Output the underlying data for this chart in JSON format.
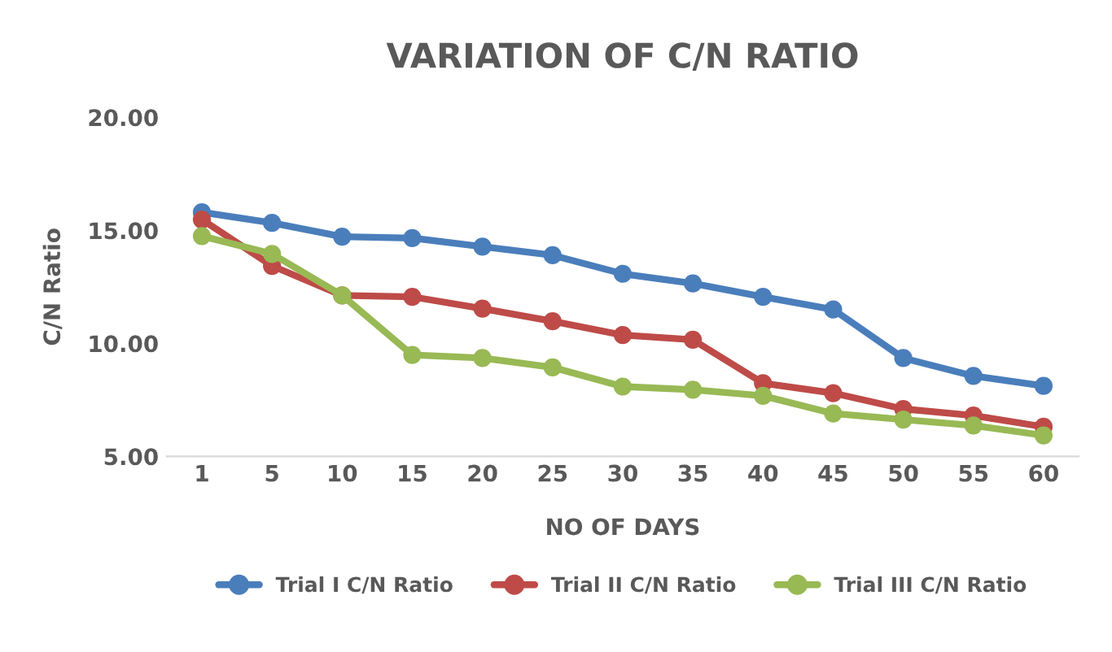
{
  "chart_data": {
    "type": "line",
    "title": "VARIATION OF C/N RATIO",
    "xlabel": "NO OF DAYS",
    "ylabel": "C/N Ratio",
    "categories": [
      "1",
      "5",
      "10",
      "15",
      "20",
      "25",
      "30",
      "35",
      "40",
      "45",
      "50",
      "55",
      "60"
    ],
    "series": [
      {
        "name": "Trial I C/N Ratio",
        "color": "#4a7ebb",
        "values": [
          15.8,
          15.33,
          14.72,
          14.66,
          14.28,
          13.9,
          13.08,
          12.65,
          12.06,
          11.5,
          9.35,
          8.56,
          8.12
        ]
      },
      {
        "name": "Trial II C/N Ratio",
        "color": "#be4b48",
        "values": [
          15.48,
          13.43,
          12.12,
          12.06,
          11.54,
          10.98,
          10.37,
          10.16,
          8.24,
          7.8,
          7.1,
          6.81,
          6.31
        ]
      },
      {
        "name": "Trial III C/N Ratio",
        "color": "#98b954",
        "values": [
          14.75,
          13.96,
          12.12,
          9.49,
          9.35,
          8.94,
          8.09,
          7.95,
          7.68,
          6.9,
          6.63,
          6.37,
          5.93
        ]
      }
    ],
    "ylim": [
      5,
      20
    ],
    "yticks": [
      {
        "value": 5,
        "label": "5.00"
      },
      {
        "value": 10,
        "label": "10.00"
      },
      {
        "value": 15,
        "label": "15.00"
      },
      {
        "value": 20,
        "label": "20.00"
      }
    ],
    "grid": false,
    "legend": "bottom",
    "marker": "circle",
    "line_style": "solid"
  }
}
